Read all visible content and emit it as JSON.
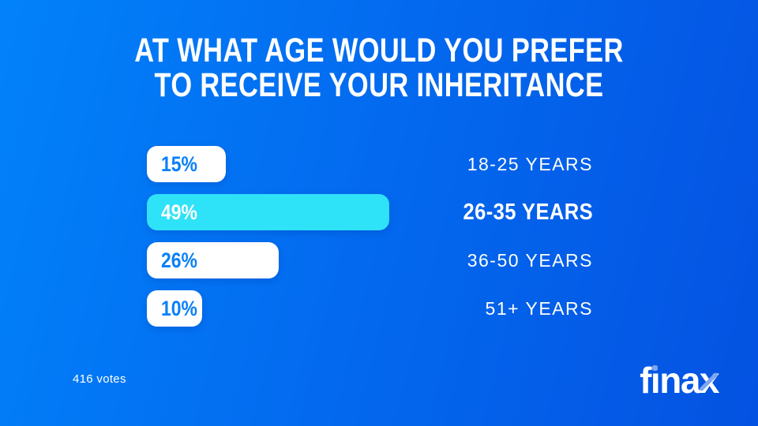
{
  "title": {
    "lines": [
      "AT WHAT AGE WOULD YOU PREFER",
      "TO RECEIVE YOUR INHERITANCE"
    ]
  },
  "chart_data": {
    "type": "bar",
    "orientation": "horizontal",
    "title": "AT WHAT AGE WOULD YOU PREFER TO RECEIVE YOUR INHERITANCE",
    "categories": [
      "18-25 YEARS",
      "26-35 YEARS",
      "36-50 YEARS",
      "51+ YEARS"
    ],
    "values": [
      15,
      49,
      26,
      10
    ],
    "value_suffix": "%",
    "highlighted_category": "26-35 YEARS",
    "legend": "none",
    "grid": false,
    "colors": {
      "bar_default": "#ffffff",
      "bar_highlight": "#2ee2f8",
      "value_text_default": "#0a80f8",
      "value_text_highlight": "#ffffff",
      "label_text": "#ffffff",
      "background_start": "#0282fa",
      "background_end": "#0452e1"
    }
  },
  "footer": {
    "votes": "416 votes",
    "logo": "finax"
  }
}
